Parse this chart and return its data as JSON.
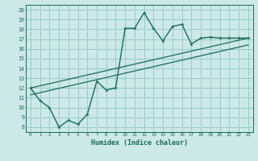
{
  "xlabel": "Humidex (Indice chaleur)",
  "bg_color": "#cce8e8",
  "grid_color": "#99cccc",
  "line_color": "#1a6b5a",
  "xlim": [
    -0.5,
    23.5
  ],
  "ylim": [
    7.5,
    20.5
  ],
  "xticks": [
    0,
    1,
    2,
    3,
    4,
    5,
    6,
    7,
    8,
    9,
    10,
    11,
    12,
    13,
    14,
    15,
    16,
    17,
    18,
    19,
    20,
    21,
    22,
    23
  ],
  "yticks": [
    8,
    9,
    10,
    11,
    12,
    13,
    14,
    15,
    16,
    17,
    18,
    19,
    20
  ],
  "main_x": [
    0,
    1,
    2,
    3,
    4,
    5,
    6,
    7,
    8,
    9,
    10,
    11,
    12,
    13,
    14,
    15,
    16,
    17,
    18,
    19,
    20,
    21,
    22,
    23
  ],
  "main_y": [
    12,
    10.7,
    10.0,
    8.0,
    8.7,
    8.3,
    9.3,
    12.7,
    11.8,
    12.0,
    18.1,
    18.1,
    19.7,
    18.1,
    16.8,
    18.3,
    18.5,
    16.5,
    17.1,
    17.2,
    17.1,
    17.1,
    17.1,
    17.1
  ],
  "line2_x": [
    0,
    23
  ],
  "line2_y": [
    12.0,
    17.1
  ],
  "line3_x": [
    0,
    23
  ],
  "line3_y": [
    11.3,
    16.4
  ]
}
